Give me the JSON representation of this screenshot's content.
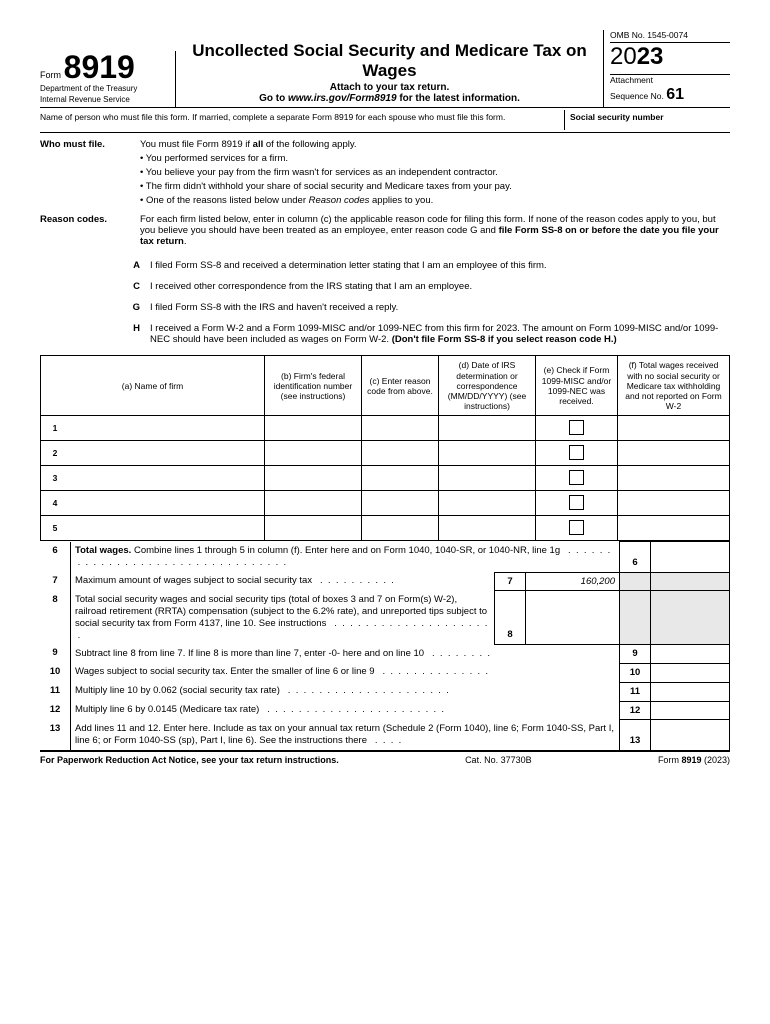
{
  "header": {
    "form_word": "Form",
    "form_number": "8919",
    "dept1": "Department of the Treasury",
    "dept2": "Internal Revenue Service",
    "title": "Uncollected Social Security and Medicare Tax on Wages",
    "attach": "Attach to your tax return.",
    "goto_prefix": "Go to ",
    "goto_url": "www.irs.gov/Form8919",
    "goto_suffix": " for the latest information.",
    "omb": "OMB No. 1545-0074",
    "year_prefix": "20",
    "year_suffix": "23",
    "attachment": "Attachment",
    "seq_label": "Sequence No. ",
    "seq_num": "61"
  },
  "name_row": {
    "instruction": "Name of person who must file this form. If married, complete a separate Form 8919 for each spouse who must file this form.",
    "ssn_label": "Social security number"
  },
  "who": {
    "label": "Who must file.",
    "intro_a": "You must file Form 8919 if ",
    "intro_b": "all",
    "intro_c": " of the following apply.",
    "b1": "• You performed services for a firm.",
    "b2": "• You believe your pay from the firm wasn't for services as an independent contractor.",
    "b3": "• The firm didn't withhold your share of social security and Medicare taxes from your pay.",
    "b4_a": "• One of the reasons listed below under ",
    "b4_b": "Reason codes",
    "b4_c": " applies to you."
  },
  "reason": {
    "label": "Reason codes.",
    "intro_a": "For each firm listed below, enter in column (c) the applicable reason code for filing this form. If none of the reason codes apply to you, but you believe you should have been treated as an employee, enter reason code G and ",
    "intro_b": "file Form SS-8 on or before the date you file your tax return",
    "intro_c": ".",
    "A": "I filed Form SS-8 and received a determination letter stating that I am an employee of this firm.",
    "C": "I received other correspondence from the IRS stating that I am an employee.",
    "G": "I filed Form SS-8 with the IRS and haven't received a reply.",
    "H_a": "I received a Form W-2 and a Form 1099-MISC and/or 1099-NEC from this firm for 2023. The amount on Form 1099-MISC and/or 1099-NEC should have been included as wages on Form W-2. ",
    "H_b": "(Don't file Form SS-8 if you select reason code H.)"
  },
  "cols": {
    "a": "(a) Name of firm",
    "b": "(b) Firm's federal identification number (see instructions)",
    "c": "(c) Enter reason code from above.",
    "d": "(d) Date of IRS determination or correspondence (MM/DD/YYYY) (see instructions)",
    "e": "(e) Check if Form 1099-MISC and/or 1099-NEC was received.",
    "f": "(f) Total wages received with no social security or Medicare tax withholding and not reported on Form W-2"
  },
  "rows": [
    "1",
    "2",
    "3",
    "4",
    "5"
  ],
  "calc": {
    "l6_a": "Total wages.",
    "l6_b": " Combine lines 1 through 5 in column (f). Enter here and on Form 1040, 1040-SR, or 1040-NR, line 1g",
    "l7": "Maximum amount of wages subject to social security tax",
    "l7_val": "160,200",
    "l8": "Total social security wages and social security tips (total of boxes 3 and 7 on Form(s) W-2), railroad retirement (RRTA) compensation (subject to the 6.2% rate), and unreported tips subject to social security tax from Form 4137, line 10. See instructions",
    "l9": "Subtract line 8 from line 7. If line 8 is more than line 7, enter -0- here and on line 10",
    "l10": "Wages subject to social security tax. Enter the smaller of line 6 or line 9",
    "l11": "Multiply line 10 by 0.062 (social security tax rate)",
    "l12": "Multiply line 6 by 0.0145 (Medicare tax rate)",
    "l13": "Add lines 11 and 12. Enter here. Include as tax on your annual tax return (Schedule 2 (Form 1040), line 6; Form 1040-SS, Part I, line 6; or Form 1040-SS (sp), Part I, line 6). See the instructions there"
  },
  "footer": {
    "left": "For Paperwork Reduction Act Notice, see your tax return instructions.",
    "center": "Cat. No. 37730B",
    "right_a": "Form ",
    "right_b": "8919",
    "right_c": " (2023)"
  }
}
